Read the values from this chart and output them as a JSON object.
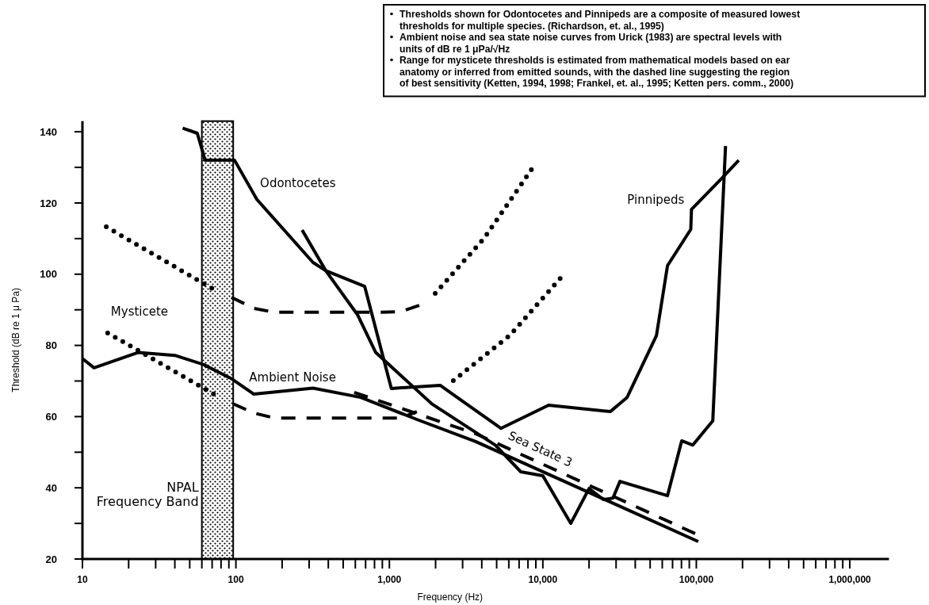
{
  "chart_data": {
    "type": "line",
    "xlabel": "Frequency (Hz)",
    "ylabel": "Threshold (dB re 1 μ Pa)",
    "log": "x",
    "grid": false,
    "xlim": [
      10,
      1800000
    ],
    "ylim": [
      20,
      143
    ],
    "xticks": [
      10,
      {
        "value": 20,
        "label": null
      },
      {
        "value": 30,
        "label": null
      },
      {
        "value": 40,
        "label": null
      },
      {
        "value": 50,
        "label": null
      },
      {
        "value": 60,
        "label": null
      },
      {
        "value": 70,
        "label": null
      },
      {
        "value": 80,
        "label": null
      },
      {
        "value": 90,
        "label": null
      },
      100,
      {
        "value": 200,
        "label": null
      },
      {
        "value": 300,
        "label": null
      },
      {
        "value": 400,
        "label": null
      },
      {
        "value": 500,
        "label": null
      },
      {
        "value": 600,
        "label": null
      },
      {
        "value": 700,
        "label": null
      },
      {
        "value": 800,
        "label": null
      },
      {
        "value": 900,
        "label": null
      },
      {
        "value": 1000,
        "label": "1,000"
      },
      {
        "value": 2000,
        "label": null
      },
      {
        "value": 3000,
        "label": null
      },
      {
        "value": 4000,
        "label": null
      },
      {
        "value": 5000,
        "label": null
      },
      {
        "value": 6000,
        "label": null
      },
      {
        "value": 7000,
        "label": null
      },
      {
        "value": 8000,
        "label": null
      },
      {
        "value": 9000,
        "label": null
      },
      {
        "value": 10000,
        "label": "10,000"
      },
      {
        "value": 20000,
        "label": null
      },
      {
        "value": 30000,
        "label": null
      },
      {
        "value": 40000,
        "label": null
      },
      {
        "value": 50000,
        "label": null
      },
      {
        "value": 60000,
        "label": null
      },
      {
        "value": 70000,
        "label": null
      },
      {
        "value": 80000,
        "label": null
      },
      {
        "value": 90000,
        "label": null
      },
      {
        "value": 100000,
        "label": "100,000"
      },
      {
        "value": 200000,
        "label": null
      },
      {
        "value": 300000,
        "label": null
      },
      {
        "value": 400000,
        "label": null
      },
      {
        "value": 500000,
        "label": null
      },
      {
        "value": 600000,
        "label": null
      },
      {
        "value": 700000,
        "label": null
      },
      {
        "value": 800000,
        "label": null
      },
      {
        "value": 900000,
        "label": null
      },
      {
        "value": 1000000,
        "label": "1,000,000"
      }
    ],
    "yticks": [
      20,
      {
        "value": 30,
        "label": null
      },
      40,
      {
        "value": 50,
        "label": null
      },
      60,
      {
        "value": 70,
        "label": null
      },
      80,
      {
        "value": 90,
        "label": null
      },
      100,
      {
        "value": 110,
        "label": null
      },
      120,
      {
        "value": 130,
        "label": null
      },
      140
    ],
    "bands": [
      {
        "axis": "x",
        "from": 60,
        "to": 96,
        "label": "NPAL\nFrequency Band"
      }
    ],
    "series": [
      {
        "name": "Odontocetes",
        "color": "#000000",
        "line_style": "solid",
        "x": [
          45,
          56,
          63,
          98,
          137,
          318,
          385,
          620,
          815,
          1900,
          4900,
          7180,
          10000,
          15200,
          20000,
          24800,
          28600,
          31800,
          64900,
          80300,
          94900,
          128000,
          155000
        ],
        "values": [
          141,
          139.6,
          132,
          132,
          121,
          103.3,
          101,
          88.6,
          78,
          63.5,
          52,
          44.5,
          43.4,
          30,
          39.8,
          36.7,
          37.1,
          41.8,
          37.8,
          53.2,
          52,
          58.8,
          136
        ]
      },
      {
        "name": "Pinnipeds",
        "color": "#000000",
        "line_style": "solid",
        "x": [
          270,
          385,
          690,
          1030,
          2140,
          5330,
          10900,
          27500,
          35400,
          55000,
          64900,
          92000,
          93000,
          147000,
          189000
        ],
        "values": [
          112.4,
          101,
          96.6,
          67.9,
          68.8,
          56.7,
          63.2,
          61.4,
          65.4,
          82.8,
          102.4,
          112.6,
          118.2,
          127,
          132
        ]
      },
      {
        "name": "Ambient Noise",
        "color": "#000000",
        "line_style": "solid",
        "x": [
          10,
          11.9,
          23,
          40,
          61.7,
          94,
          131,
          318,
          650,
          1510,
          3650,
          103000
        ],
        "values": [
          76.3,
          73.7,
          78,
          77.2,
          74.6,
          70.6,
          66.3,
          68,
          65.4,
          59.2,
          53,
          24.9
        ]
      },
      {
        "name": "Sea State 3",
        "color": "#000000",
        "line_style": "dashed",
        "x": [
          590,
          3650,
          101000
        ],
        "values": [
          66.8,
          55.2,
          26.9
        ]
      },
      {
        "name": "Mysticete",
        "color": "#000000",
        "line_style": "dotted",
        "x": [
          14.6,
          74.6
        ],
        "values": [
          83.5,
          65.9
        ]
      },
      {
        "color": "#000000",
        "line_style": "dashed",
        "x": [
          95.7,
          131,
          178,
          900,
          1190,
          1510
        ],
        "values": [
          63.6,
          61,
          59.6,
          59.6,
          59.6,
          61.4
        ]
      },
      {
        "color": "#000000",
        "line_style": "dotted",
        "x": [
          2610,
          6120,
          14000
        ],
        "values": [
          70.1,
          82.9,
          100.4
        ]
      },
      {
        "color": "#000000",
        "line_style": "dotted",
        "x": [
          14.3,
          74.6
        ],
        "values": [
          113.3,
          95.3
        ]
      },
      {
        "color": "#000000",
        "line_style": "dashed",
        "x": [
          93.5,
          131,
          178,
          900,
          1190,
          1580
        ],
        "values": [
          93.5,
          90.4,
          89.3,
          89.3,
          89.5,
          91.3
        ]
      },
      {
        "color": "#000000",
        "line_style": "dotted",
        "x": [
          1990,
          4160,
          8490
        ],
        "values": [
          94.6,
          110.2,
          129.6
        ]
      }
    ],
    "annotations": [
      "Thresholds shown for Odontocetes and Pinnipeds are a composite of measured lowest\nthresholds for multiple species. (Richardson, et. al., 1995)",
      "Ambient noise and sea state noise curves from Urick (1983) are spectral levels with\nunits of dB re 1 μPa/√Hz",
      "Range for mysticete thresholds is estimated from mathematical models based on ear\nanatomy or inferred from emitted sounds, with the dashed line suggesting the region\nof best sensitivity (Ketten, 1994, 1998; Frankel, et. al., 1995; Ketten pers. comm., 2000)"
    ]
  }
}
